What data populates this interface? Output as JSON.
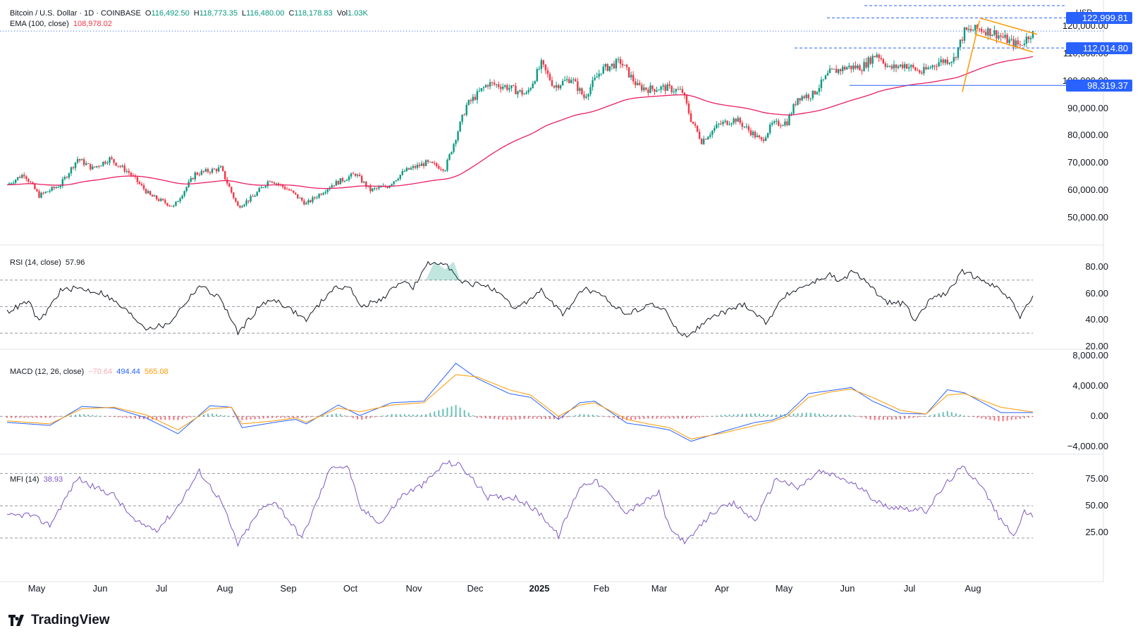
{
  "header": {
    "symbol": "Bitcoin / U.S. Dollar · 1D · COINBASE",
    "o_label": "O",
    "o_value": "116,492.50",
    "h_label": "H",
    "h_value": "118,773.35",
    "l_label": "L",
    "l_value": "116,480.00",
    "c_label": "C",
    "c_value": "118,178.83",
    "vol_label": "Vol",
    "vol_value": "1.03K",
    "ema_label": "EMA (100, close)",
    "ema_value": "108,978.02"
  },
  "currency": "USD",
  "price_tags": [
    {
      "text": "122,999.81",
      "value": 122999.81
    },
    {
      "text": "112,014.80",
      "value": 112014.8
    },
    {
      "text": "98,319.37",
      "value": 98319.37
    }
  ],
  "panes": {
    "rsi": {
      "label": "RSI (14, close)",
      "value": "57.96"
    },
    "macd": {
      "label": "MACD (12, 26, close)",
      "hist": "−70.64",
      "macd": "494.44",
      "signal": "565.08"
    },
    "mfi": {
      "label": "MFI (14)",
      "value": "38.93"
    }
  },
  "brand": "TradingView",
  "colors": {
    "up": "#089981",
    "down": "#f23645",
    "ema": "#e91e63",
    "rsi": "#131722",
    "macd": "#2962ff",
    "signal": "#ff9800",
    "mfi": "#7e57c2",
    "level": "#2962ff",
    "pattern": "#ff9800"
  },
  "chart_data": [
    {
      "type": "candlestick",
      "title": "Bitcoin / U.S. Dollar · 1D · COINBASE",
      "x_ticks": [
        "May",
        "Jun",
        "Jul",
        "Aug",
        "Sep",
        "Oct",
        "Nov",
        "Dec",
        "2025",
        "Feb",
        "Mar",
        "Apr",
        "May",
        "Jun",
        "Jul",
        "Aug"
      ],
      "y_ticks": [
        "50,000.00",
        "60,000.00",
        "70,000.00",
        "80,000.00",
        "90,000.00",
        "100,000.00",
        "110,000.00",
        "120,000.00"
      ],
      "ylim": [
        41000,
        128000
      ],
      "price_path": [
        [
          0,
          62000
        ],
        [
          8,
          66000
        ],
        [
          15,
          58000
        ],
        [
          25,
          62000
        ],
        [
          33,
          71500
        ],
        [
          40,
          68000
        ],
        [
          48,
          71500
        ],
        [
          57,
          66500
        ],
        [
          67,
          58000
        ],
        [
          78,
          54000
        ],
        [
          88,
          66000
        ],
        [
          100,
          68000
        ],
        [
          108,
          54000
        ],
        [
          115,
          57500
        ],
        [
          123,
          64000
        ],
        [
          132,
          60000
        ],
        [
          140,
          55000
        ],
        [
          152,
          62000
        ],
        [
          163,
          66000
        ],
        [
          170,
          60000
        ],
        [
          178,
          61500
        ],
        [
          186,
          67000
        ],
        [
          196,
          70000
        ],
        [
          205,
          68000
        ],
        [
          215,
          91000
        ],
        [
          225,
          99000
        ],
        [
          233,
          98000
        ],
        [
          243,
          95000
        ],
        [
          250,
          106000
        ],
        [
          256,
          98000
        ],
        [
          264,
          101000
        ],
        [
          270,
          94000
        ],
        [
          278,
          104000
        ],
        [
          287,
          107000
        ],
        [
          295,
          98000
        ],
        [
          300,
          97000
        ],
        [
          308,
          97500
        ],
        [
          316,
          96000
        ],
        [
          320,
          86000
        ],
        [
          325,
          78000
        ],
        [
          333,
          84000
        ],
        [
          341,
          86000
        ],
        [
          347,
          82000
        ],
        [
          353,
          78000
        ],
        [
          358,
          84000
        ],
        [
          365,
          85000
        ],
        [
          370,
          94000
        ],
        [
          377,
          95000
        ],
        [
          385,
          103000
        ],
        [
          393,
          105000
        ],
        [
          400,
          105000
        ],
        [
          407,
          110000
        ],
        [
          413,
          104500
        ],
        [
          420,
          106000
        ],
        [
          428,
          103000
        ],
        [
          436,
          107000
        ],
        [
          443,
          108000
        ],
        [
          448,
          118000
        ],
        [
          455,
          119000
        ],
        [
          462,
          117500
        ],
        [
          470,
          114000
        ],
        [
          474,
          113000
        ],
        [
          480,
          118178
        ]
      ],
      "ema": {
        "label": "EMA (100, close)",
        "last": 108978.02
      },
      "levels": [
        122999.81,
        112014.8,
        98319.37
      ]
    },
    {
      "type": "line",
      "title": "RSI (14, close)",
      "y_ticks": [
        "20.00",
        "40.00",
        "60.00",
        "80.00"
      ],
      "ylim": [
        20,
        90
      ],
      "bands": [
        30,
        50,
        70
      ],
      "points": [
        [
          0,
          46
        ],
        [
          10,
          54
        ],
        [
          15,
          38
        ],
        [
          25,
          62
        ],
        [
          33,
          64
        ],
        [
          45,
          60
        ],
        [
          55,
          48
        ],
        [
          65,
          34
        ],
        [
          75,
          36
        ],
        [
          90,
          66
        ],
        [
          100,
          56
        ],
        [
          108,
          30
        ],
        [
          118,
          50
        ],
        [
          125,
          56
        ],
        [
          140,
          40
        ],
        [
          152,
          63
        ],
        [
          160,
          66
        ],
        [
          165,
          50
        ],
        [
          175,
          55
        ],
        [
          185,
          70
        ],
        [
          190,
          64
        ],
        [
          197,
          82
        ],
        [
          205,
          84
        ],
        [
          212,
          68
        ],
        [
          225,
          66
        ],
        [
          238,
          48
        ],
        [
          250,
          62
        ],
        [
          260,
          44
        ],
        [
          270,
          64
        ],
        [
          280,
          56
        ],
        [
          290,
          44
        ],
        [
          300,
          52
        ],
        [
          308,
          48
        ],
        [
          312,
          34
        ],
        [
          318,
          28
        ],
        [
          330,
          42
        ],
        [
          345,
          52
        ],
        [
          355,
          38
        ],
        [
          365,
          60
        ],
        [
          377,
          68
        ],
        [
          385,
          74
        ],
        [
          390,
          68
        ],
        [
          395,
          76
        ],
        [
          402,
          70
        ],
        [
          410,
          54
        ],
        [
          420,
          52
        ],
        [
          425,
          38
        ],
        [
          432,
          56
        ],
        [
          440,
          60
        ],
        [
          447,
          76
        ],
        [
          455,
          72
        ],
        [
          465,
          62
        ],
        [
          470,
          56
        ],
        [
          474,
          42
        ],
        [
          480,
          58
        ]
      ]
    },
    {
      "type": "line",
      "title": "MACD (12, 26, close)",
      "y_ticks": [
        "−4,000.00",
        "0.00",
        "4,000.00",
        "8,000.00"
      ],
      "ylim": [
        -5000,
        8200
      ],
      "series": [
        {
          "name": "MACD",
          "points": [
            [
              0,
              -800
            ],
            [
              20,
              -1200
            ],
            [
              35,
              1300
            ],
            [
              50,
              1100
            ],
            [
              65,
              -200
            ],
            [
              80,
              -2300
            ],
            [
              95,
              1400
            ],
            [
              105,
              1200
            ],
            [
              110,
              -1500
            ],
            [
              125,
              -800
            ],
            [
              135,
              -400
            ],
            [
              140,
              -1000
            ],
            [
              155,
              1500
            ],
            [
              165,
              100
            ],
            [
              180,
              1800
            ],
            [
              195,
              2000
            ],
            [
              210,
              7000
            ],
            [
              220,
              5000
            ],
            [
              235,
              3000
            ],
            [
              245,
              2500
            ],
            [
              258,
              -400
            ],
            [
              268,
              1800
            ],
            [
              275,
              2000
            ],
            [
              290,
              -900
            ],
            [
              300,
              -1300
            ],
            [
              310,
              -1800
            ],
            [
              320,
              -3300
            ],
            [
              335,
              -2000
            ],
            [
              350,
              -800
            ],
            [
              358,
              -500
            ],
            [
              365,
              300
            ],
            [
              375,
              3000
            ],
            [
              385,
              3400
            ],
            [
              395,
              3800
            ],
            [
              405,
              2000
            ],
            [
              418,
              400
            ],
            [
              430,
              300
            ],
            [
              440,
              3500
            ],
            [
              448,
              3100
            ],
            [
              465,
              500
            ],
            [
              480,
              494
            ]
          ]
        },
        {
          "name": "Signal",
          "points": [
            [
              0,
              -600
            ],
            [
              20,
              -1000
            ],
            [
              35,
              1000
            ],
            [
              50,
              1200
            ],
            [
              65,
              200
            ],
            [
              80,
              -1800
            ],
            [
              95,
              1000
            ],
            [
              105,
              1200
            ],
            [
              110,
              -1000
            ],
            [
              125,
              -600
            ],
            [
              135,
              -200
            ],
            [
              140,
              -800
            ],
            [
              155,
              1100
            ],
            [
              165,
              600
            ],
            [
              180,
              1500
            ],
            [
              195,
              1800
            ],
            [
              210,
              5500
            ],
            [
              220,
              5200
            ],
            [
              235,
              3500
            ],
            [
              245,
              2800
            ],
            [
              258,
              0
            ],
            [
              268,
              1500
            ],
            [
              275,
              1800
            ],
            [
              290,
              -400
            ],
            [
              300,
              -1000
            ],
            [
              310,
              -1500
            ],
            [
              320,
              -3000
            ],
            [
              335,
              -2200
            ],
            [
              350,
              -1200
            ],
            [
              358,
              -700
            ],
            [
              365,
              0
            ],
            [
              375,
              2500
            ],
            [
              385,
              3200
            ],
            [
              395,
              3600
            ],
            [
              405,
              2500
            ],
            [
              418,
              800
            ],
            [
              430,
              300
            ],
            [
              440,
              2800
            ],
            [
              448,
              3000
            ],
            [
              465,
              1200
            ],
            [
              480,
              565
            ]
          ]
        }
      ],
      "histogram_last": -70.64
    },
    {
      "type": "line",
      "title": "MFI (14)",
      "y_ticks": [
        "25.00",
        "50.00",
        "75.00"
      ],
      "ylim": [
        3,
        96
      ],
      "bands": [
        20,
        50,
        80
      ],
      "points": [
        [
          0,
          40
        ],
        [
          10,
          42
        ],
        [
          20,
          32
        ],
        [
          33,
          76
        ],
        [
          40,
          68
        ],
        [
          50,
          60
        ],
        [
          60,
          35
        ],
        [
          70,
          28
        ],
        [
          78,
          44
        ],
        [
          90,
          82
        ],
        [
          100,
          55
        ],
        [
          108,
          14
        ],
        [
          118,
          45
        ],
        [
          125,
          55
        ],
        [
          138,
          20
        ],
        [
          152,
          88
        ],
        [
          160,
          85
        ],
        [
          165,
          48
        ],
        [
          175,
          34
        ],
        [
          185,
          60
        ],
        [
          195,
          70
        ],
        [
          205,
          90
        ],
        [
          212,
          88
        ],
        [
          225,
          58
        ],
        [
          238,
          58
        ],
        [
          250,
          42
        ],
        [
          258,
          22
        ],
        [
          268,
          68
        ],
        [
          275,
          74
        ],
        [
          290,
          44
        ],
        [
          305,
          62
        ],
        [
          310,
          28
        ],
        [
          318,
          16
        ],
        [
          330,
          44
        ],
        [
          340,
          52
        ],
        [
          350,
          36
        ],
        [
          360,
          76
        ],
        [
          370,
          66
        ],
        [
          380,
          82
        ],
        [
          390,
          76
        ],
        [
          398,
          68
        ],
        [
          410,
          50
        ],
        [
          420,
          48
        ],
        [
          430,
          45
        ],
        [
          440,
          72
        ],
        [
          447,
          86
        ],
        [
          455,
          72
        ],
        [
          465,
          36
        ],
        [
          472,
          22
        ],
        [
          476,
          46
        ],
        [
          480,
          39
        ]
      ]
    }
  ]
}
